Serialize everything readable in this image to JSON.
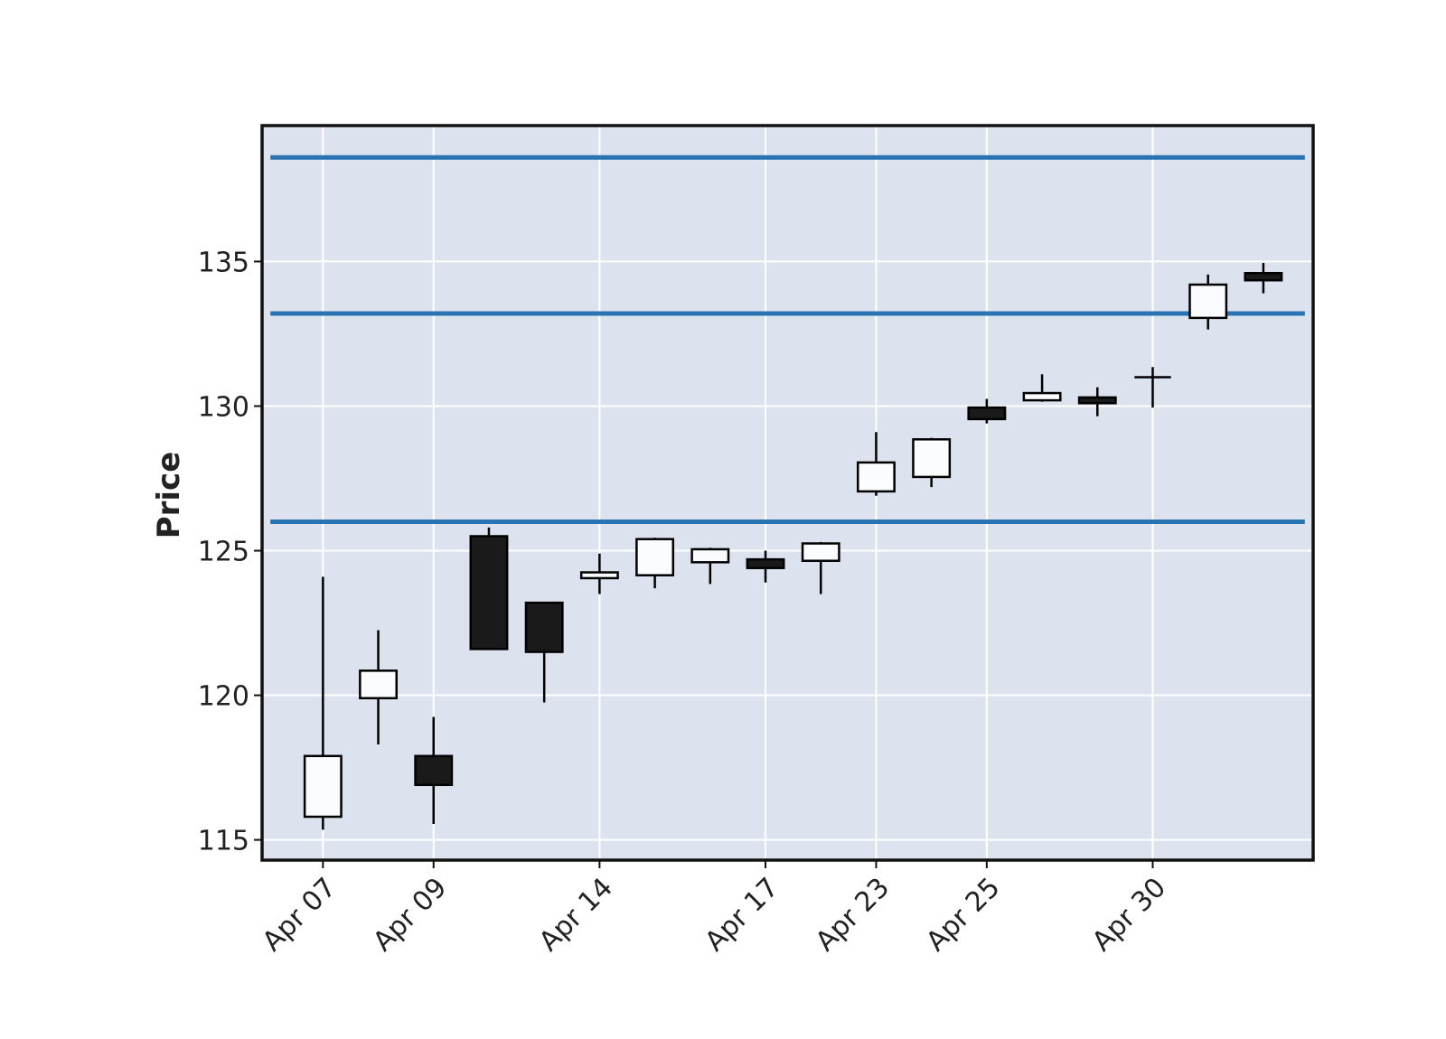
{
  "chart_data": {
    "type": "candlestick",
    "title": "",
    "xlabel": "",
    "ylabel": "Price",
    "ylim": [
      114.3,
      139.7
    ],
    "y_ticks": [
      115,
      120,
      125,
      130,
      135
    ],
    "grid": true,
    "x_tick_labels": [
      {
        "index": 0,
        "label": "Apr 07"
      },
      {
        "index": 2,
        "label": "Apr 09"
      },
      {
        "index": 5,
        "label": "Apr 14"
      },
      {
        "index": 8,
        "label": "Apr 17"
      },
      {
        "index": 10,
        "label": "Apr 23"
      },
      {
        "index": 12,
        "label": "Apr 25"
      },
      {
        "index": 15,
        "label": "Apr 30"
      }
    ],
    "candles": [
      {
        "open": 115.8,
        "high": 124.1,
        "low": 115.35,
        "close": 117.9
      },
      {
        "open": 119.9,
        "high": 122.25,
        "low": 118.3,
        "close": 120.85
      },
      {
        "open": 117.9,
        "high": 119.25,
        "low": 115.55,
        "close": 116.9
      },
      {
        "open": 125.5,
        "high": 125.8,
        "low": 121.6,
        "close": 121.6
      },
      {
        "open": 123.2,
        "high": 123.2,
        "low": 119.75,
        "close": 121.5
      },
      {
        "open": 124.05,
        "high": 124.9,
        "low": 123.5,
        "close": 124.25
      },
      {
        "open": 124.15,
        "high": 125.45,
        "low": 123.7,
        "close": 125.4
      },
      {
        "open": 124.6,
        "high": 125.1,
        "low": 123.85,
        "close": 125.05
      },
      {
        "open": 124.7,
        "high": 125.0,
        "low": 123.9,
        "close": 124.4
      },
      {
        "open": 124.65,
        "high": 125.3,
        "low": 123.5,
        "close": 125.25
      },
      {
        "open": 127.05,
        "high": 129.1,
        "low": 126.9,
        "close": 128.05
      },
      {
        "open": 127.55,
        "high": 128.9,
        "low": 127.2,
        "close": 128.85
      },
      {
        "open": 129.95,
        "high": 130.25,
        "low": 129.4,
        "close": 129.55
      },
      {
        "open": 130.2,
        "high": 131.1,
        "low": 130.15,
        "close": 130.45
      },
      {
        "open": 130.3,
        "high": 130.65,
        "low": 129.65,
        "close": 130.1
      },
      {
        "open": 130.95,
        "high": 131.35,
        "low": 129.95,
        "close": 131.0
      },
      {
        "open": 133.05,
        "high": 134.55,
        "low": 132.65,
        "close": 134.2
      },
      {
        "open": 134.6,
        "high": 134.95,
        "low": 133.9,
        "close": 134.35
      }
    ],
    "hlines": [
      126.0,
      133.2,
      138.6
    ],
    "colors": {
      "background": "#dde3ee",
      "grid": "#ffffff",
      "up_fill": "#fafcff",
      "down_fill": "#1a1a1a",
      "edge": "#000000",
      "hline": "#2a73b2",
      "text": "#222222"
    }
  }
}
